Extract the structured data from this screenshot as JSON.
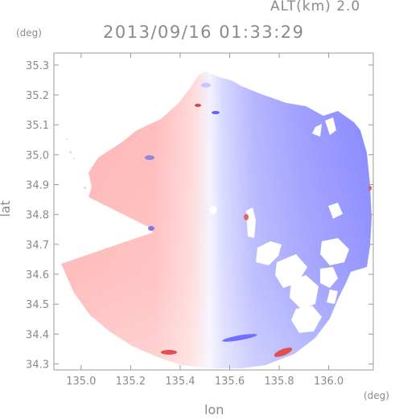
{
  "header": {
    "altitude": "ALT(km) 2.0",
    "timestamp": "2013/09/16 01:33:29"
  },
  "axes": {
    "y_unit": "(deg)",
    "x_unit": "(deg)",
    "y_label": "lat",
    "x_label": "lon",
    "x_ticks": [
      "135.0",
      "135.2",
      "135.4",
      "135.6",
      "135.8",
      "136.0"
    ],
    "y_ticks": [
      "35.3",
      "35.2",
      "35.1",
      "35.0",
      "34.9",
      "34.8",
      "34.7",
      "34.6",
      "34.5",
      "34.4",
      "34.3"
    ],
    "x_range": [
      134.89,
      136.18
    ],
    "y_range": [
      34.28,
      35.34
    ]
  },
  "radar": {
    "center_lon": 135.52,
    "center_lat": 34.8,
    "colors": {
      "approaching": "#8c8cff",
      "receding": "#ff9c9c",
      "neutral": "#f4f4ff",
      "frame": "#9a9a9a"
    }
  }
}
